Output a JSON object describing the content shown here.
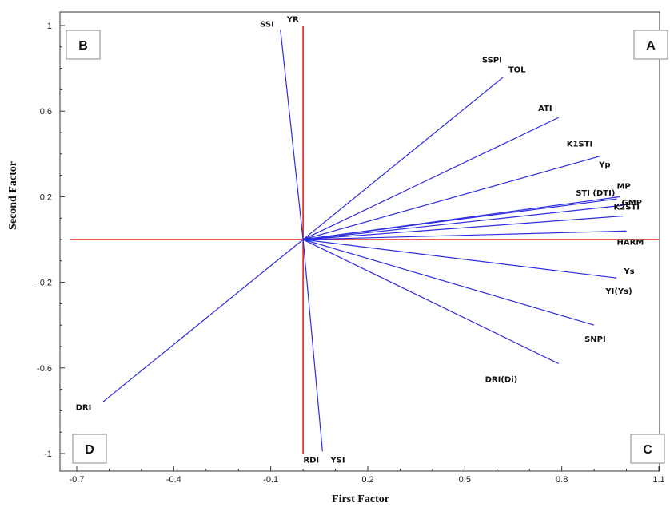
{
  "chart_data": {
    "type": "biplot",
    "xlabel": "First Factor",
    "ylabel": "Second Factor",
    "xlim": [
      -0.72,
      1.1
    ],
    "ylim": [
      -1.05,
      1.05
    ],
    "xticks": [
      -0.7,
      -0.4,
      -0.1,
      0.2,
      0.5,
      0.8,
      1.1
    ],
    "xtick_labels": [
      "-0.7",
      "-0.4",
      "-0.1",
      "0.2",
      "0.5",
      "0.8",
      "1.1"
    ],
    "yticks": [
      1,
      0.6,
      0.2,
      -0.2,
      -0.6,
      -1
    ],
    "ytick_labels": [
      "1",
      "0.6",
      "0.2",
      "-0.2",
      "-0.6",
      "-1"
    ],
    "reference_lines": {
      "color": "#e82020",
      "x": 0,
      "y": 0,
      "x_extent": [
        -0.72,
        1.1
      ],
      "y_extent": [
        -1.0,
        1.0
      ]
    },
    "vector_color": "#2d2de0",
    "quadrant_labels": [
      "A",
      "B",
      "C",
      "D"
    ],
    "vectors": [
      {
        "name": "SSI",
        "x": -0.07,
        "y": 0.98
      },
      {
        "name": "YR",
        "x": -0.07,
        "y": 0.98
      },
      {
        "name": "SSPI",
        "x": 0.62,
        "y": 0.76
      },
      {
        "name": "TOL",
        "x": 0.62,
        "y": 0.76
      },
      {
        "name": "ATI",
        "x": 0.79,
        "y": 0.57
      },
      {
        "name": "K1STI",
        "x": 0.92,
        "y": 0.39
      },
      {
        "name": "Yp",
        "x": 0.92,
        "y": 0.39
      },
      {
        "name": "STI (DTI)",
        "x": 0.97,
        "y": 0.19
      },
      {
        "name": "MP",
        "x": 0.98,
        "y": 0.2
      },
      {
        "name": "GMP",
        "x": 0.99,
        "y": 0.16
      },
      {
        "name": "K2STI",
        "x": 0.99,
        "y": 0.11
      },
      {
        "name": "HARM",
        "x": 1.0,
        "y": 0.04
      },
      {
        "name": "Ys",
        "x": 0.97,
        "y": -0.18
      },
      {
        "name": "YI(Ys)",
        "x": 0.97,
        "y": -0.18
      },
      {
        "name": "SNPI",
        "x": 0.9,
        "y": -0.4
      },
      {
        "name": "DRI(Di)",
        "x": 0.79,
        "y": -0.58
      },
      {
        "name": "RDI",
        "x": 0.06,
        "y": -0.99
      },
      {
        "name": "YSI",
        "x": 0.06,
        "y": -0.99
      },
      {
        "name": "DRI",
        "x": -0.62,
        "y": -0.76
      }
    ]
  }
}
